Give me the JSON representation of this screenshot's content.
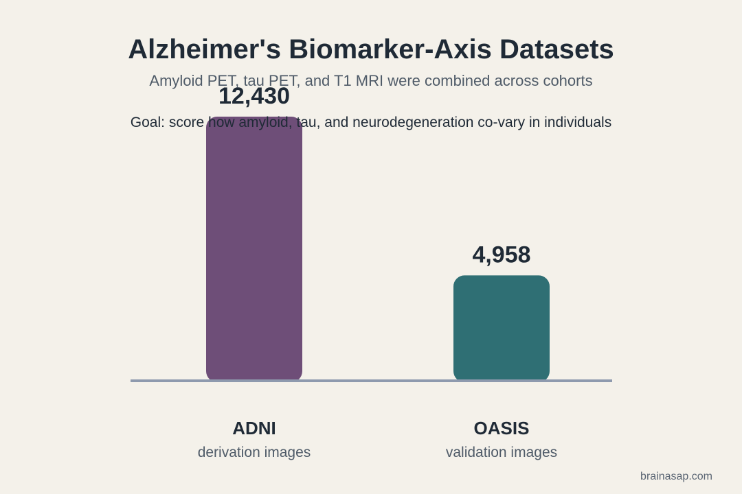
{
  "header": {
    "title": "Alzheimer's Biomarker-Axis Datasets",
    "subtitle": "Amyloid PET, tau PET, and T1 MRI were combined across cohorts",
    "goal": "Goal: score how amyloid, tau, and neurodegeneration co-vary in individuals"
  },
  "footer": {
    "source": "brainasap.com"
  },
  "colors": {
    "background": "#f4f1ea",
    "adni": "#6e4e78",
    "oasis": "#2f6f74",
    "baseline": "#8e9aae",
    "text": "#1f2a36",
    "muted": "#4f5b68"
  },
  "chart_data": {
    "type": "bar",
    "categories": [
      "ADNI",
      "OASIS"
    ],
    "category_sublabels": [
      "derivation images",
      "validation images"
    ],
    "values": [
      12430,
      4958
    ],
    "value_labels": [
      "12,430",
      "4,958"
    ],
    "bar_colors": [
      "#6e4e78",
      "#2f6f74"
    ],
    "ylim": [
      0,
      12430
    ],
    "grid": false,
    "legend": "none"
  }
}
